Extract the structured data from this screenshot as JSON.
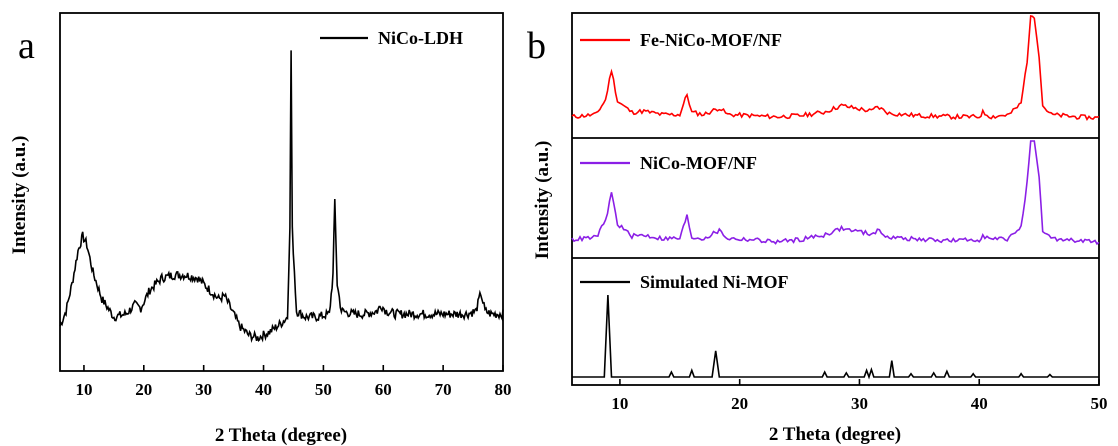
{
  "chart_data": [
    {
      "type": "line",
      "panel_label": "a",
      "xlabel": "2 Theta (degree)",
      "ylabel": "Intensity (a.u.)",
      "xlim": [
        6,
        80
      ],
      "y_tick_labels": "none",
      "x_ticks": [
        10,
        20,
        30,
        40,
        50,
        60,
        70,
        80
      ],
      "legend_placement": "top-right",
      "series": [
        {
          "name": "NiCo-LDH",
          "color": "#000000",
          "x": [
            6,
            7,
            8,
            9,
            9.8,
            10.5,
            11.5,
            13,
            15,
            17,
            18.5,
            19.5,
            21,
            23,
            25,
            27,
            29,
            31,
            32.5,
            33.5,
            34.5,
            36,
            37.5,
            39,
            41,
            43,
            44,
            44.4,
            44.6,
            44.8,
            45.5,
            47,
            49,
            51,
            51.6,
            51.9,
            52.3,
            53,
            55,
            57,
            59,
            59.6,
            60.5,
            62,
            65,
            68,
            71,
            74,
            75.5,
            76.3,
            77,
            78,
            80
          ],
          "y": [
            8,
            13,
            22,
            33,
            38,
            35,
            26,
            17,
            11,
            12,
            15,
            14,
            20,
            24,
            25,
            25,
            24,
            20,
            17,
            18,
            14,
            8,
            5,
            4,
            6,
            9,
            11,
            42,
            100,
            40,
            13,
            11,
            11,
            12,
            25,
            50,
            22,
            13,
            12,
            12,
            13,
            15,
            13,
            12,
            12,
            12,
            12,
            12,
            13,
            19,
            13,
            12,
            12
          ]
        }
      ]
    },
    {
      "type": "line",
      "panel_label": "b",
      "xlabel": "2 Theta (degree)",
      "ylabel": "Intensity (a.u.)",
      "xlim": [
        6,
        50
      ],
      "y_tick_labels": "none",
      "x_ticks": [
        10,
        20,
        30,
        40,
        50
      ],
      "layout": "three stacked panels",
      "series": [
        {
          "name": "Fe-NiCo-MOF/NF",
          "color": "#ff0000",
          "x": [
            6,
            8,
            8.8,
            9.3,
            9.8,
            11,
            12,
            13.5,
            15,
            15.6,
            16,
            17,
            18.3,
            19,
            21,
            23,
            25,
            27,
            28.5,
            29.5,
            31,
            31.5,
            32.5,
            35,
            38,
            40,
            40.3,
            41,
            42.5,
            43.5,
            44,
            44.3,
            44.6,
            45,
            45.3,
            46,
            48,
            50
          ],
          "y": [
            10,
            12,
            25,
            52,
            24,
            14,
            15,
            12,
            12,
            30,
            14,
            12,
            18,
            12,
            11,
            10,
            11,
            14,
            20,
            18,
            15,
            19,
            13,
            11,
            10,
            10,
            14,
            10,
            12,
            22,
            60,
            100,
            100,
            65,
            20,
            12,
            10,
            9
          ]
        },
        {
          "name": "NiCo-MOF/NF",
          "color": "#8b1fe6",
          "x": [
            6,
            8,
            8.8,
            9.3,
            9.8,
            11,
            12,
            13.5,
            15,
            15.6,
            16,
            17,
            18.3,
            19,
            21,
            23,
            25,
            27,
            28.5,
            29.5,
            31,
            31.5,
            32.5,
            35,
            38,
            40,
            40.3,
            41,
            42.5,
            43.5,
            44,
            44.3,
            44.6,
            45,
            45.3,
            46,
            48,
            50
          ],
          "y": [
            12,
            14,
            28,
            54,
            26,
            15,
            16,
            13,
            13,
            33,
            14,
            13,
            20,
            13,
            12,
            10,
            12,
            16,
            22,
            20,
            17,
            20,
            14,
            12,
            11,
            12,
            16,
            12,
            13,
            24,
            62,
            100,
            100,
            66,
            20,
            13,
            11,
            10
          ]
        },
        {
          "name": "Simulated Ni-MOF",
          "color": "#000000",
          "x": [
            6,
            8.7,
            9,
            9.3,
            12,
            14.1,
            14.3,
            14.5,
            15.8,
            16,
            16.2,
            17.7,
            18,
            18.3,
            20,
            26.9,
            27.1,
            27.3,
            28.7,
            28.9,
            29.1,
            30.4,
            30.6,
            30.8,
            31,
            31.2,
            32.5,
            32.7,
            32.9,
            34.1,
            34.3,
            34.5,
            36,
            36.2,
            36.4,
            37.1,
            37.3,
            37.5,
            39.3,
            39.5,
            39.7,
            43.3,
            43.5,
            43.7,
            45.7,
            45.9,
            46.1,
            50
          ],
          "y": [
            0,
            0,
            100,
            0,
            0,
            0,
            6,
            0,
            0,
            8,
            0,
            0,
            32,
            0,
            0,
            0,
            6,
            0,
            0,
            5,
            0,
            0,
            8,
            0,
            9,
            0,
            0,
            20,
            0,
            0,
            4,
            0,
            0,
            5,
            0,
            0,
            7,
            0,
            0,
            4,
            0,
            0,
            4,
            0,
            0,
            3,
            0,
            0
          ]
        }
      ]
    }
  ]
}
